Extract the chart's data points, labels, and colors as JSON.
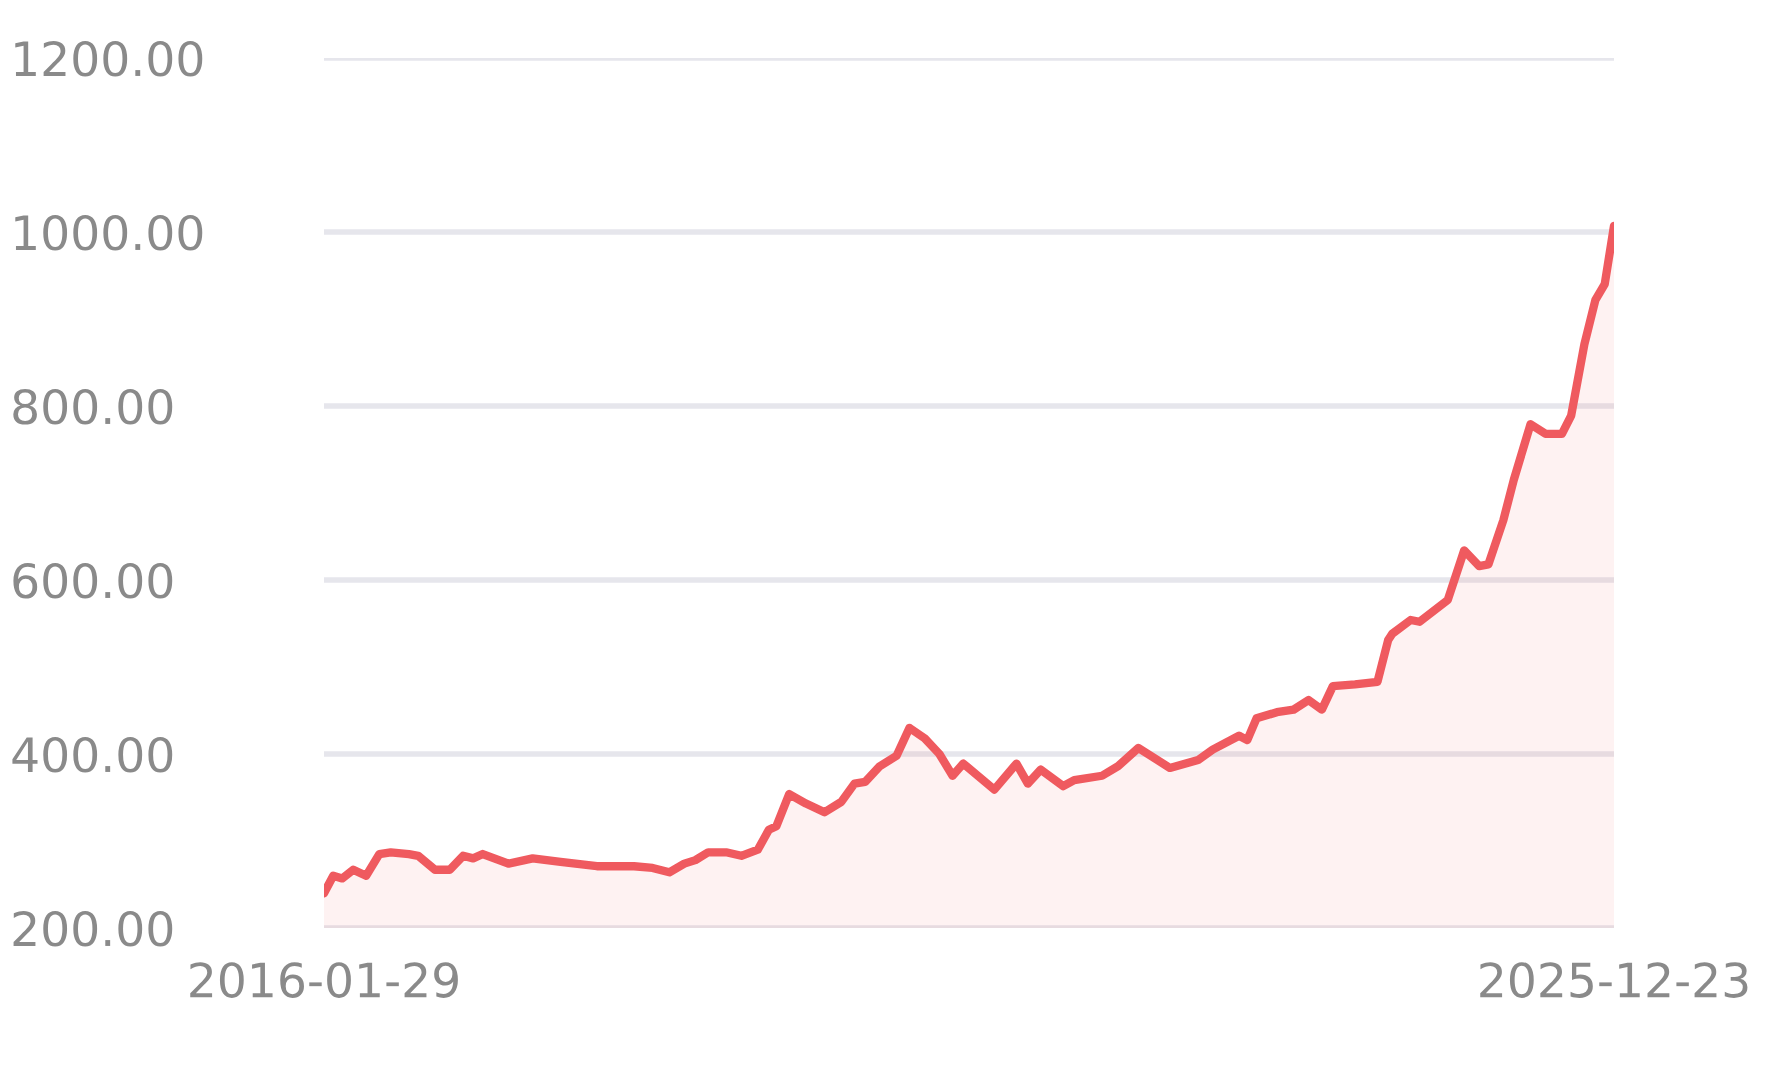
{
  "chart_data": {
    "type": "area",
    "x": [
      "2016-01-29",
      "2016-02-24",
      "2016-03-20",
      "2016-04-20",
      "2016-05-26",
      "2016-07-02",
      "2016-08-03",
      "2016-09-23",
      "2016-10-19",
      "2016-12-05",
      "2017-01-16",
      "2017-02-22",
      "2017-03-22",
      "2017-04-18",
      "2017-06-29",
      "2017-09-05",
      "2017-11-22",
      "2018-03-04",
      "2018-06-16",
      "2018-08-07",
      "2018-09-23",
      "2018-11-04",
      "2018-12-05",
      "2019-01-10",
      "2019-03-01",
      "2019-04-13",
      "2019-05-29",
      "2019-06-29",
      "2019-07-20",
      "2019-08-25",
      "2019-10-11",
      "2019-12-02",
      "2020-01-18",
      "2020-02-24",
      "2020-03-25",
      "2020-05-05",
      "2020-06-21",
      "2020-07-27",
      "2020-09-08",
      "2020-10-19",
      "2020-11-25",
      "2020-12-25",
      "2021-03-22",
      "2021-05-23",
      "2021-06-24",
      "2021-07-30",
      "2021-10-01",
      "2021-11-01",
      "2022-01-18",
      "2022-03-04",
      "2022-04-30",
      "2022-07-27",
      "2022-10-14",
      "2022-11-24",
      "2023-02-06",
      "2023-03-01",
      "2023-03-27",
      "2023-05-23",
      "2023-07-09",
      "2023-08-20",
      "2023-09-26",
      "2023-10-27",
      "2023-12-28",
      "2024-02-29",
      "2024-03-30",
      "2024-04-10",
      "2024-06-01",
      "2024-06-26",
      "2024-09-13",
      "2024-10-29",
      "2024-12-10",
      "2025-01-05",
      "2025-02-16",
      "2025-03-17",
      "2025-05-03",
      "2025-06-14",
      "2025-07-30",
      "2025-08-25",
      "2025-10-01",
      "2025-11-01",
      "2025-11-27",
      "2025-12-23"
    ],
    "series": [
      {
        "color": "#ef5a5f",
        "values": [
          240,
          260,
          257,
          267,
          260,
          285,
          287,
          285,
          283,
          267,
          267,
          283,
          280,
          285,
          274,
          280,
          276,
          271,
          271,
          269,
          264,
          274,
          278,
          287,
          287,
          283,
          290,
          313,
          317,
          354,
          343,
          333,
          345,
          366,
          368,
          386,
          398,
          430,
          418,
          400,
          375,
          389,
          359,
          389,
          366,
          382,
          363,
          370,
          375,
          386,
          407,
          384,
          393,
          405,
          421,
          416,
          441,
          448,
          451,
          462,
          451,
          478,
          480,
          483,
          531,
          538,
          554,
          552,
          577,
          634,
          616,
          618,
          669,
          715,
          779,
          768,
          768,
          789,
          871,
          922,
          940,
          1007
        ]
      }
    ],
    "xlim": [
      "2016-01-29",
      "2025-12-23"
    ],
    "xticks": [
      {
        "value": "2016-01-29",
        "label": "2016-01-29"
      },
      {
        "value": "2025-12-23",
        "label": "2025-12-23"
      }
    ],
    "ylim": [
      200,
      1200
    ],
    "yticks": [
      {
        "value": 200,
        "label": "200.00"
      },
      {
        "value": 400,
        "label": "400.00"
      },
      {
        "value": 600,
        "label": "600.00"
      },
      {
        "value": 800,
        "label": "800.00"
      },
      {
        "value": 1000,
        "label": "1000.00"
      },
      {
        "value": 1200,
        "label": "1200.00"
      }
    ],
    "grid": "y"
  }
}
